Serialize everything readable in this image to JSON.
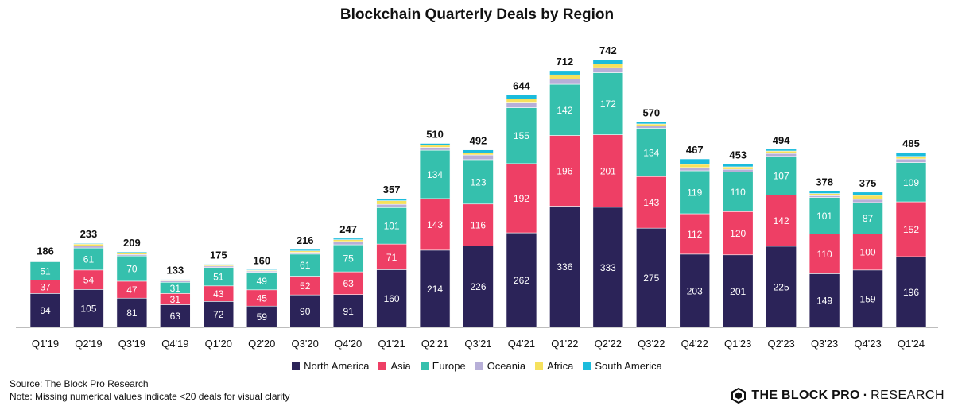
{
  "chart_data": {
    "type": "bar",
    "stacked": true,
    "title": "Blockchain Quarterly Deals by Region",
    "categories": [
      "Q1'19",
      "Q2'19",
      "Q3'19",
      "Q4'19",
      "Q1'20",
      "Q2'20",
      "Q3'20",
      "Q4'20",
      "Q1'21",
      "Q2'21",
      "Q3'21",
      "Q4'21",
      "Q1'22",
      "Q2'22",
      "Q3'22",
      "Q4'22",
      "Q1'23",
      "Q2'23",
      "Q3'23",
      "Q4'23",
      "Q1'24"
    ],
    "totals": [
      186,
      233,
      209,
      133,
      175,
      160,
      216,
      247,
      357,
      510,
      492,
      644,
      712,
      742,
      570,
      467,
      453,
      494,
      378,
      375,
      485
    ],
    "series": [
      {
        "name": "North America",
        "color": "#2b2358",
        "labeled": true,
        "values": [
          94,
          105,
          81,
          63,
          72,
          59,
          90,
          91,
          160,
          214,
          226,
          262,
          336,
          333,
          275,
          203,
          201,
          225,
          149,
          159,
          196
        ]
      },
      {
        "name": "Asia",
        "color": "#ee3f65",
        "labeled": true,
        "values": [
          37,
          54,
          47,
          31,
          43,
          45,
          52,
          63,
          71,
          143,
          116,
          192,
          196,
          201,
          143,
          112,
          120,
          142,
          110,
          100,
          152
        ]
      },
      {
        "name": "Europe",
        "color": "#35c0ad",
        "labeled": true,
        "values": [
          51,
          61,
          70,
          31,
          51,
          49,
          61,
          75,
          101,
          134,
          123,
          155,
          142,
          172,
          134,
          119,
          110,
          107,
          101,
          87,
          109
        ]
      },
      {
        "name": "Oceania",
        "color": "#b7afd8",
        "labeled": false,
        "values": [
          2,
          6,
          4,
          4,
          4,
          3,
          5,
          9,
          9,
          8,
          13,
          13,
          14,
          14,
          6,
          9,
          7,
          8,
          5,
          9,
          10
        ]
      },
      {
        "name": "Africa",
        "color": "#f6e15d",
        "labeled": false,
        "values": [
          1,
          5,
          4,
          2,
          3,
          2,
          4,
          5,
          10,
          6,
          6,
          11,
          12,
          10,
          6,
          9,
          7,
          7,
          6,
          11,
          7
        ]
      },
      {
        "name": "South America",
        "color": "#1bbcdc",
        "labeled": false,
        "values": [
          1,
          2,
          3,
          2,
          2,
          2,
          4,
          4,
          6,
          5,
          8,
          11,
          12,
          12,
          6,
          15,
          8,
          5,
          7,
          9,
          11
        ]
      }
    ],
    "ylim": [
      0,
      760
    ],
    "grid": false,
    "legend": "bottom-center"
  },
  "footer": {
    "source": "Source: The Block Pro Research",
    "note": "Note: Missing numerical values indicate <20 deals for visual clarity"
  },
  "brand": {
    "main": "THE BLOCK PRO",
    "separator": "·",
    "sub": "RESEARCH",
    "icon": "the-block-logo-icon"
  }
}
